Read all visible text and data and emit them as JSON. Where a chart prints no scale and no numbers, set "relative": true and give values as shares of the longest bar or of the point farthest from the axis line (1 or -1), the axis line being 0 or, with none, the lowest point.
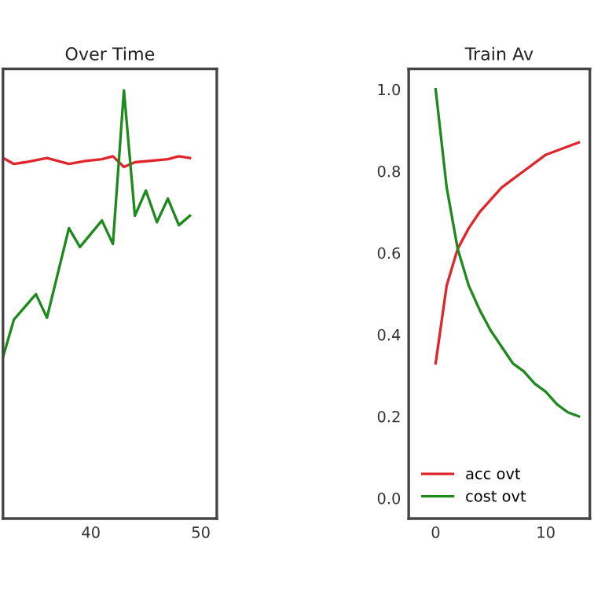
{
  "chart_data": [
    {
      "type": "line",
      "title": "Over Time",
      "relative": true,
      "xlim": [
        32,
        51.45
      ],
      "xticks": [
        40,
        50
      ],
      "grid": false,
      "legend": false,
      "tick_labels": "x",
      "series": [
        {
          "color": "#e0262a",
          "x": [
            32,
            33,
            34,
            36,
            38,
            39.5,
            41,
            42,
            43,
            44,
            47,
            48,
            49
          ],
          "values": [
            0.842,
            0.828,
            0.832,
            0.842,
            0.828,
            0.835,
            0.839,
            0.846,
            0.821,
            0.832,
            0.839,
            0.846,
            0.842
          ]
        },
        {
          "color": "#1e8a1e",
          "x": [
            32,
            33,
            35,
            36,
            38,
            39,
            41,
            42,
            43,
            44,
            45,
            46,
            47,
            48,
            49
          ],
          "values": [
            0.377,
            0.465,
            0.524,
            0.469,
            0.678,
            0.634,
            0.696,
            0.641,
            1.0,
            0.707,
            0.766,
            0.692,
            0.747,
            0.685,
            0.707
          ]
        }
      ]
    },
    {
      "type": "line",
      "title": "Train Av",
      "xlim": [
        -2.45,
        14
      ],
      "ylim": [
        -0.05,
        1.05
      ],
      "xticks": [
        0,
        10
      ],
      "yticks": [
        {
          "value": 0,
          "label": "0.0"
        },
        0.2,
        0.4,
        0.6,
        0.8,
        {
          "value": 1,
          "label": "1.0"
        }
      ],
      "grid": false,
      "legend": "bottom left",
      "series": [
        {
          "name": "acc ovt",
          "color": "#e0262a",
          "x": [
            0,
            1,
            2,
            3,
            4,
            5,
            6,
            7,
            8,
            9,
            10,
            11,
            12,
            13
          ],
          "values": [
            0.33,
            0.52,
            0.61,
            0.66,
            0.7,
            0.73,
            0.76,
            0.78,
            0.8,
            0.82,
            0.84,
            0.85,
            0.86,
            0.87
          ]
        },
        {
          "name": "cost ovt",
          "color": "#1e8a1e",
          "x": [
            0,
            1,
            2,
            3,
            4,
            5,
            6,
            7,
            8,
            9,
            10,
            11,
            12,
            13
          ],
          "values": [
            1.0,
            0.76,
            0.61,
            0.52,
            0.46,
            0.41,
            0.37,
            0.33,
            0.31,
            0.28,
            0.26,
            0.23,
            0.21,
            0.2
          ]
        }
      ]
    }
  ]
}
